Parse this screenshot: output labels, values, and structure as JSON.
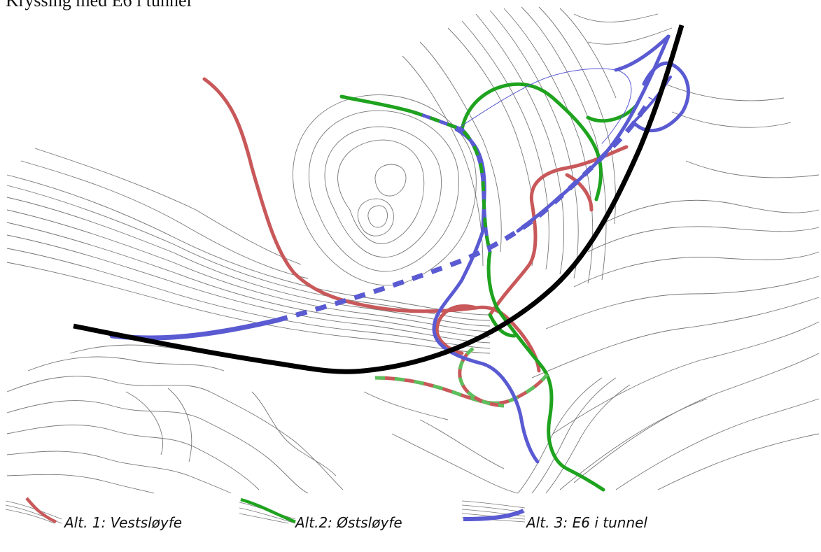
{
  "title": "Kryssing med E6 i tunnel",
  "legend": [
    {
      "label": "Alt. 1: Vestsløyfe",
      "color": "#c8585a"
    },
    {
      "label": "Alt.2: Østsløyfe",
      "color": "#1fa31f"
    },
    {
      "label": "Alt. 3: E6 i tunnel",
      "color": "#5a5ad2"
    }
  ],
  "colors": {
    "existing_e6": "#000000",
    "contour": "#777777"
  }
}
